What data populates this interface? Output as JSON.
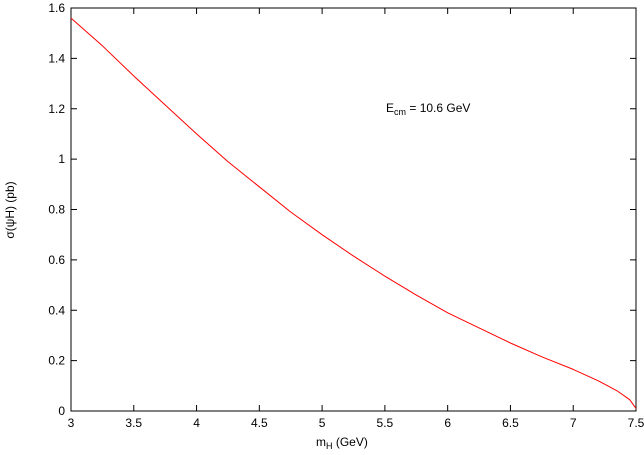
{
  "chart_data": {
    "type": "line",
    "title": "",
    "xlabel": {
      "main": "m",
      "sub": "H",
      "rest": "  (GeV)"
    },
    "ylabel": "σ(ψH)   (pb)",
    "xlim": [
      3,
      7.5
    ],
    "ylim": [
      0,
      1.6
    ],
    "xticks": [
      3,
      3.5,
      4,
      4.5,
      5,
      5.5,
      6,
      6.5,
      7,
      7.5
    ],
    "xtick_labels": [
      "3",
      "3.5",
      "4",
      "4.5",
      "5",
      "5.5",
      "6",
      "6.5",
      "7",
      "7.5"
    ],
    "yticks": [
      0,
      0.2,
      0.4,
      0.6,
      0.8,
      1,
      1.2,
      1.4,
      1.6
    ],
    "ytick_labels": [
      "0",
      "0.2",
      "0.4",
      "0.6",
      "0.8",
      "1",
      "1.2",
      "1.4",
      "1.6"
    ],
    "grid": false,
    "annotation": {
      "main": "E",
      "sub": "cm",
      "rest": " = 10.6 GeV"
    },
    "series": [
      {
        "color": "#ff0000",
        "x": [
          3.0,
          3.25,
          3.5,
          3.75,
          4.0,
          4.25,
          4.5,
          4.75,
          5.0,
          5.25,
          5.5,
          5.75,
          6.0,
          6.25,
          6.5,
          6.75,
          7.0,
          7.2,
          7.35,
          7.45,
          7.5
        ],
        "y": [
          1.56,
          1.45,
          1.33,
          1.215,
          1.1,
          0.99,
          0.89,
          0.79,
          0.7,
          0.615,
          0.535,
          0.46,
          0.39,
          0.33,
          0.27,
          0.215,
          0.165,
          0.12,
          0.08,
          0.045,
          0.01
        ]
      }
    ]
  }
}
